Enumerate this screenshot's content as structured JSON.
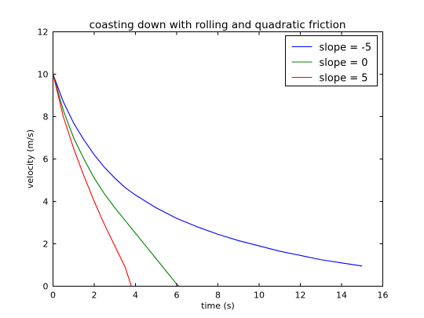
{
  "chart_data": {
    "type": "line",
    "title": "coasting down with rolling and quadratic friction",
    "xlabel": "time (s)",
    "ylabel": "velocity (m/s)",
    "xlim": [
      0,
      16
    ],
    "ylim": [
      0,
      12
    ],
    "xticks": [
      0,
      2,
      4,
      6,
      8,
      10,
      12,
      14,
      16
    ],
    "yticks": [
      0,
      2,
      4,
      6,
      8,
      10,
      12
    ],
    "grid": false,
    "legend_position": "top-right",
    "series": [
      {
        "name": "slope = -5",
        "color": "#0000ff",
        "x": [
          0,
          0.5,
          1,
          1.5,
          2,
          2.5,
          3,
          3.5,
          4,
          5,
          6,
          7,
          8,
          9,
          10,
          11,
          12,
          13,
          14,
          15
        ],
        "y": [
          10.0,
          8.7,
          7.7,
          6.9,
          6.2,
          5.6,
          5.1,
          4.65,
          4.3,
          3.7,
          3.2,
          2.8,
          2.45,
          2.15,
          1.9,
          1.65,
          1.45,
          1.25,
          1.1,
          0.95
        ]
      },
      {
        "name": "slope = 0",
        "color": "#008000",
        "x": [
          0,
          0.5,
          1,
          1.5,
          2,
          2.5,
          3,
          3.5,
          4,
          4.5,
          5,
          5.5,
          6,
          6.1,
          7,
          8,
          9,
          10,
          11,
          12,
          13,
          14,
          15
        ],
        "y": [
          10.0,
          8.3,
          7.0,
          6.0,
          5.1,
          4.35,
          3.7,
          3.1,
          2.5,
          1.9,
          1.3,
          0.7,
          0.1,
          0,
          0,
          0,
          0,
          0,
          0,
          0,
          0,
          0,
          0
        ]
      },
      {
        "name": "slope = 5",
        "color": "#ff0000",
        "x": [
          0,
          0.5,
          1,
          1.5,
          2,
          2.5,
          3,
          3.5,
          3.8,
          4,
          5,
          6,
          7,
          8,
          9,
          10,
          11,
          12,
          13,
          14,
          15
        ],
        "y": [
          10.0,
          8.0,
          6.5,
          5.2,
          4.0,
          2.9,
          1.9,
          0.9,
          0,
          0,
          0,
          0,
          0,
          0,
          0,
          0,
          0,
          0,
          0,
          0,
          0
        ]
      }
    ]
  }
}
